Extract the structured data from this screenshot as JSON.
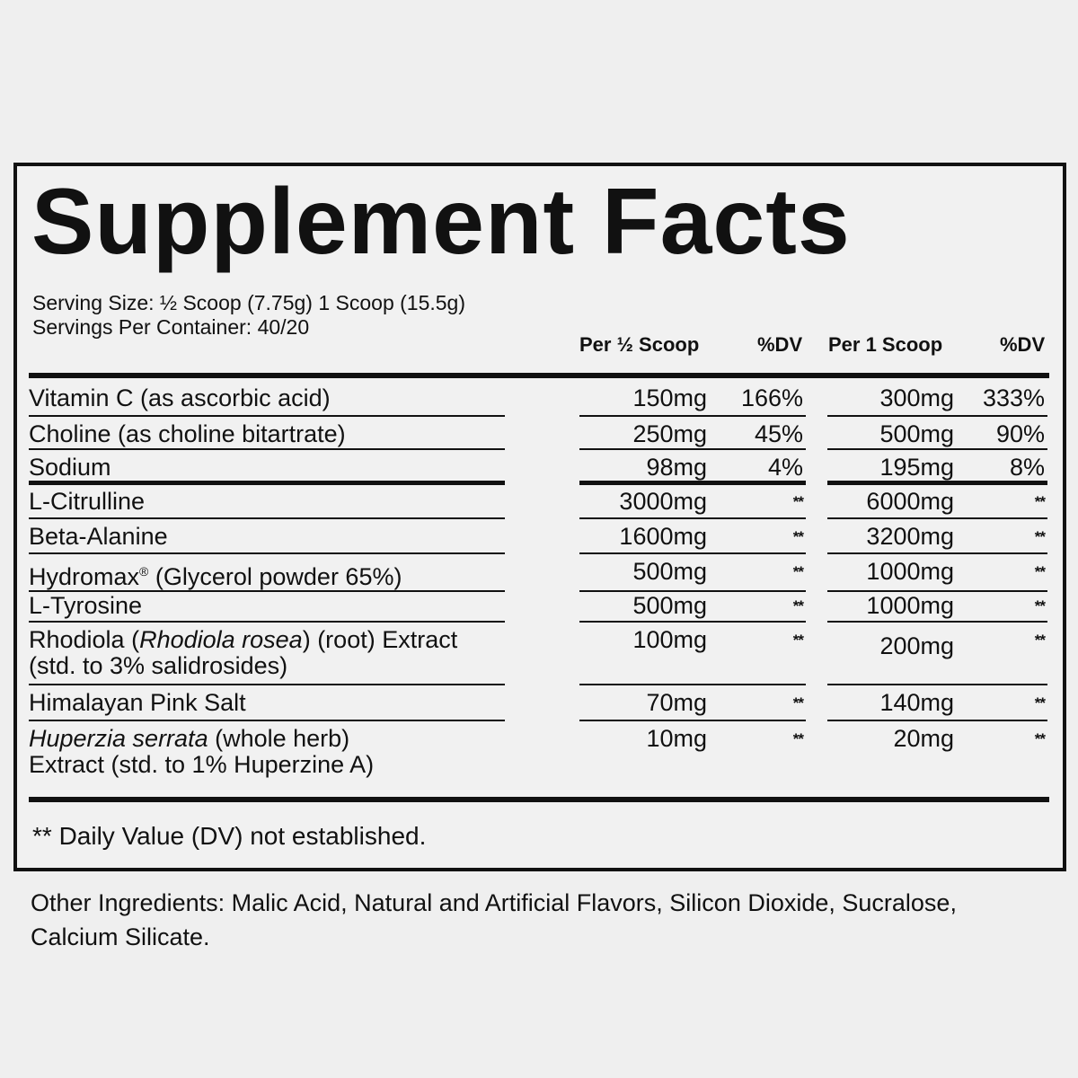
{
  "title": "Supplement Facts",
  "serving_size": "Serving Size: ½ Scoop (7.75g) 1 Scoop (15.5g)",
  "servings_per_container": "Servings Per Container: 40/20",
  "columns": {
    "per_half": "Per ½ Scoop",
    "dv_half": "%DV",
    "per_one": "Per 1 Scoop",
    "dv_one": "%DV"
  },
  "rows": [
    {
      "name": "Vitamin C (as ascorbic acid)",
      "half": "150mg",
      "dv_half": "166%",
      "one": "300mg",
      "dv_one": "333%"
    },
    {
      "name": "Choline (as choline bitartrate)",
      "half": "250mg",
      "dv_half": "45%",
      "one": "500mg",
      "dv_one": "90%"
    },
    {
      "name": "Sodium",
      "half": "98mg",
      "dv_half": "4%",
      "one": "195mg",
      "dv_one": "8%"
    },
    {
      "name": "L-Citrulline",
      "half": "3000mg",
      "dv_half": "**",
      "one": "6000mg",
      "dv_one": "**"
    },
    {
      "name": "Beta-Alanine",
      "half": "1600mg",
      "dv_half": "**",
      "one": "3200mg",
      "dv_one": "**"
    },
    {
      "name": "Hydromax",
      "name_mark": "®",
      "name_rest": " (Glycerol powder 65%)",
      "half": "500mg",
      "dv_half": "**",
      "one": "1000mg",
      "dv_one": "**"
    },
    {
      "name": "L-Tyrosine",
      "half": "500mg",
      "dv_half": "**",
      "one": "1000mg",
      "dv_one": "**"
    },
    {
      "name_pre": "Rhodiola (",
      "name_italic": "Rhodiola rosea",
      "name_post": ") (root) Extract",
      "name_line2": "(std. to 3% salidrosides)",
      "half": "100mg",
      "dv_half": "**",
      "one": "200mg",
      "dv_one": "**"
    },
    {
      "name": "Himalayan Pink Salt",
      "half": "70mg",
      "dv_half": "**",
      "one": "140mg",
      "dv_one": "**"
    },
    {
      "name_italic": "Huperzia serrata",
      "name_post": " (whole herb)",
      "name_line2": "Extract (std. to 1% Huperzine A)",
      "half": "10mg",
      "dv_half": "**",
      "one": "20mg",
      "dv_one": "**"
    }
  ],
  "footnote": "** Daily Value (DV) not established.",
  "other_ingredients": "Other Ingredients: Malic Acid, Natural and Artificial Flavors, Silicon Dioxide, Sucralose, Calcium Silicate."
}
